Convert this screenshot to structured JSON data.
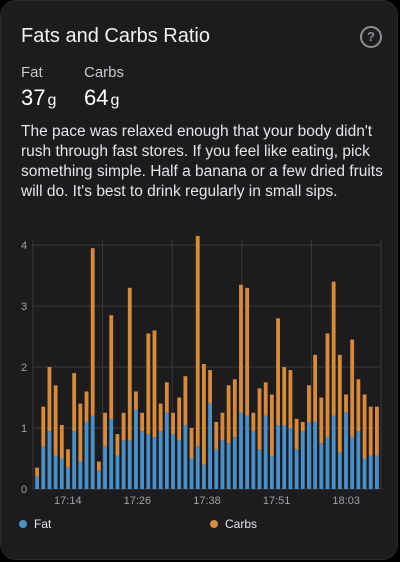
{
  "card": {
    "title": "Fats and Carbs Ratio",
    "help_icon": "question-circle-icon",
    "help_symbol": "?"
  },
  "metrics": {
    "fat": {
      "label": "Fat",
      "value": "37",
      "unit": "g"
    },
    "carbs": {
      "label": "Carbs",
      "value": "64",
      "unit": "g"
    }
  },
  "description": "The pace was relaxed enough that your body didn't rush through fast stores. If you feel like eating, pick something simple. Half a banana or a few dried fruits will do. It's best to drink regularly in small sips.",
  "chart_data": {
    "type": "bar",
    "stacked": true,
    "x_tick_labels": [
      "17:14",
      "17:26",
      "17:38",
      "17:51",
      "18:03"
    ],
    "y_ticks": [
      0,
      1,
      2,
      3,
      4
    ],
    "ylim": [
      0,
      4.1
    ],
    "grid": true,
    "legend_position": "bottom",
    "colors": {
      "fat": "#4a90c8",
      "carbs": "#d98a38",
      "grid": "#3a3a3c",
      "text": "#a0a0a5"
    },
    "series": [
      {
        "name": "Fat",
        "values": [
          0.2,
          0.7,
          0.95,
          0.55,
          0.5,
          0.35,
          0.95,
          0.45,
          1.1,
          1.2,
          0.3,
          0.7,
          1.15,
          0.55,
          0.8,
          0.8,
          1.3,
          0.95,
          0.9,
          0.85,
          0.95,
          1.25,
          0.9,
          0.8,
          1.05,
          0.5,
          0.7,
          0.4,
          1.4,
          0.65,
          0.8,
          0.75,
          0.85,
          1.25,
          1.2,
          0.95,
          0.65,
          1.2,
          0.55,
          1.05,
          1.05,
          1.0,
          0.65,
          0.95,
          1.1,
          1.1,
          0.75,
          0.85,
          1.2,
          0.6,
          1.25,
          0.85,
          0.95,
          0.5,
          0.55,
          0.55
        ]
      },
      {
        "name": "Carbs",
        "values": [
          0.15,
          0.65,
          1.05,
          1.15,
          0.55,
          0.3,
          0.95,
          0.95,
          0.5,
          2.75,
          0.15,
          0.55,
          1.7,
          0.35,
          0.45,
          2.5,
          0.3,
          0.3,
          1.65,
          1.75,
          0.45,
          0.5,
          0.35,
          0.7,
          0.8,
          0.5,
          3.45,
          1.65,
          0.55,
          0.45,
          0.45,
          0.95,
          0.95,
          2.1,
          2.1,
          0.3,
          1.0,
          0.55,
          1.0,
          1.75,
          0.95,
          0.95,
          0.5,
          0.15,
          0.6,
          1.1,
          0.75,
          1.7,
          2.2,
          1.6,
          0.3,
          1.6,
          0.85,
          1.05,
          0.8,
          0.8
        ]
      }
    ]
  },
  "legend": {
    "fat": {
      "label": "Fat",
      "color": "#4a90c8"
    },
    "carbs": {
      "label": "Carbs",
      "color": "#d98a38"
    }
  }
}
